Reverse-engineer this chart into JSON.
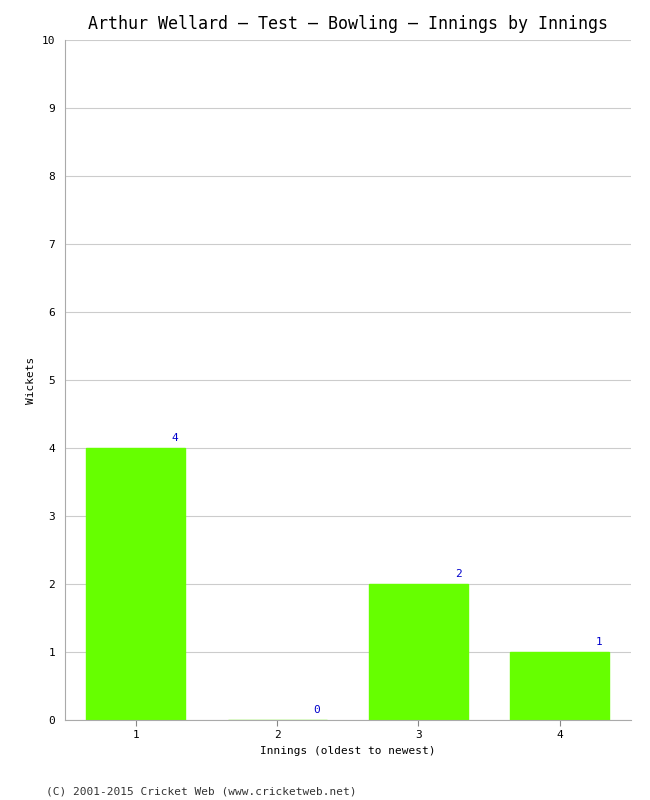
{
  "title": "Arthur Wellard – Test – Bowling – Innings by Innings",
  "categories": [
    "1",
    "2",
    "3",
    "4"
  ],
  "values": [
    4,
    0,
    2,
    1
  ],
  "bar_color": "#66ff00",
  "xlabel": "Innings (oldest to newest)",
  "ylabel": "Wickets",
  "ylim": [
    0,
    10
  ],
  "yticks": [
    0,
    1,
    2,
    3,
    4,
    5,
    6,
    7,
    8,
    9,
    10
  ],
  "annotation_color": "#0000cc",
  "annotation_fontsize": 8,
  "footer": "(C) 2001-2015 Cricket Web (www.cricketweb.net)",
  "background_color": "#ffffff",
  "grid_color": "#cccccc",
  "title_fontsize": 12,
  "label_fontsize": 8,
  "tick_fontsize": 8,
  "footer_fontsize": 8
}
